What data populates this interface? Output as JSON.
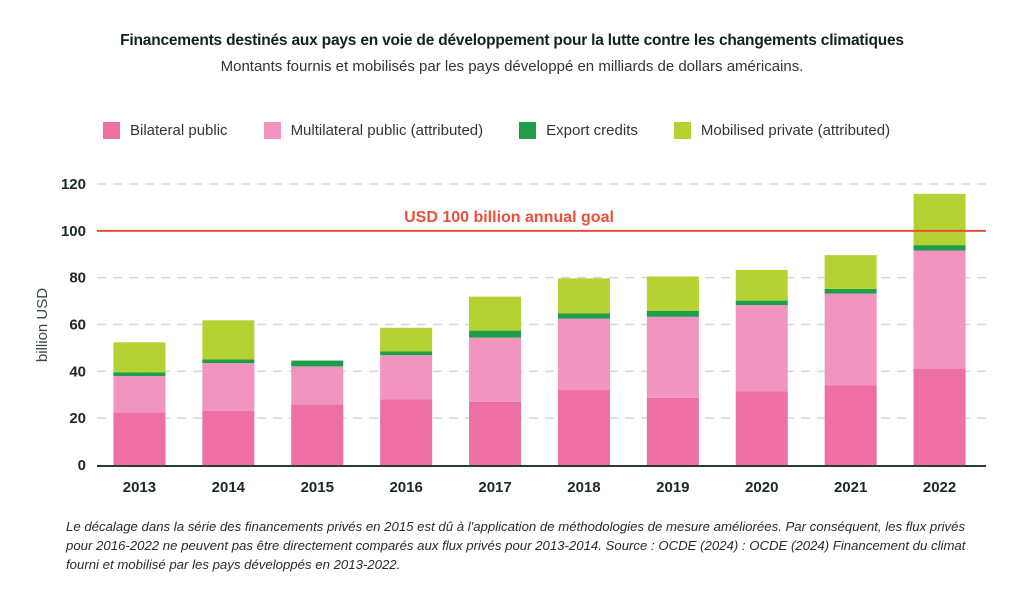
{
  "header": {
    "title": "Financements destinés aux pays en voie de développement pour la lutte contre les changements climatiques",
    "subtitle": "Montants fournis et mobilisés par les pays développé en milliards de dollars américains."
  },
  "footnote": "Le décalage dans la série des financements privés en 2015 est dû à l'application de méthodologies de mesure améliorées. Par conséquent, les flux privés pour 2016-2022 ne peuvent pas être directement comparés aux flux privés pour 2013-2014. Source : OCDE (2024) : OCDE (2024) Financement du climat fourni et mobilisé par les pays développés en 2013-2022.",
  "chart_data": {
    "type": "bar",
    "stacked": true,
    "title": "Financements destinés aux pays en voie de développement pour la lutte contre les changements climatiques",
    "subtitle": "Montants fournis et mobilisés par les pays développé en milliards de dollars américains.",
    "xlabel": "",
    "ylabel": "billion USD",
    "ylim": [
      0,
      120
    ],
    "yticks": [
      0,
      20,
      40,
      60,
      80,
      100,
      120
    ],
    "grid": true,
    "legend_position": "top",
    "categories": [
      "2013",
      "2014",
      "2015",
      "2016",
      "2017",
      "2018",
      "2019",
      "2020",
      "2021",
      "2022"
    ],
    "series": [
      {
        "name": "Bilateral public",
        "color": "#ee6fa3",
        "values": [
          22.5,
          23.1,
          25.9,
          28.0,
          27.0,
          32.0,
          28.7,
          31.4,
          34.1,
          41.0
        ]
      },
      {
        "name": "Multilateral public (attributed)",
        "color": "#f194c0",
        "values": [
          15.5,
          20.4,
          16.2,
          18.9,
          27.4,
          30.5,
          34.6,
          36.9,
          39.1,
          50.6
        ]
      },
      {
        "name": "Export credits",
        "color": "#1e9e4a",
        "values": [
          1.6,
          1.6,
          2.5,
          1.6,
          3.0,
          2.3,
          2.6,
          1.9,
          2.0,
          2.3
        ]
      },
      {
        "name": "Mobilised private (attributed)",
        "color": "#b5d233",
        "values": [
          12.8,
          16.7,
          0,
          10.1,
          14.5,
          14.9,
          14.6,
          13.1,
          14.4,
          21.9
        ]
      }
    ],
    "annotations": [
      {
        "type": "hline",
        "y": 100,
        "label": "USD 100 billion annual goal",
        "color": "#ef4e3a"
      }
    ]
  }
}
